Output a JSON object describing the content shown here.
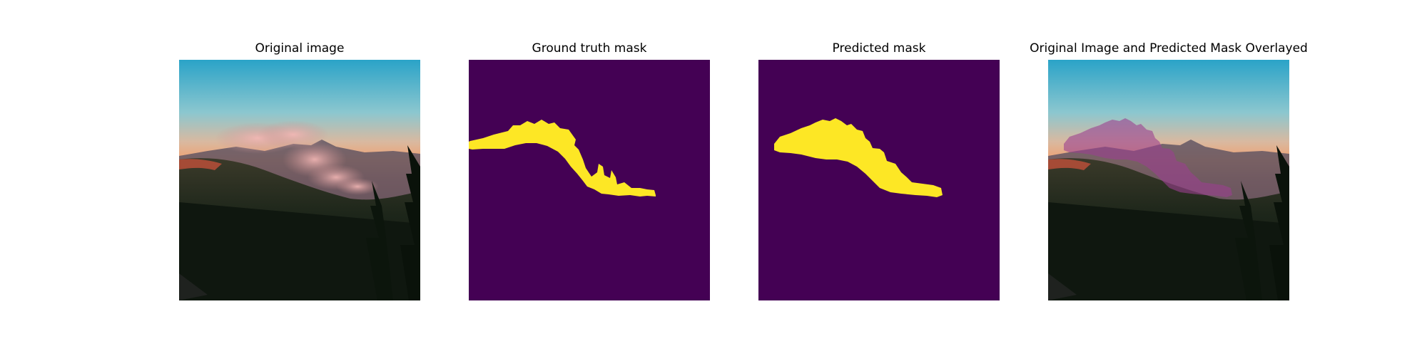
{
  "figure": {
    "panels": [
      {
        "title": "Original image"
      },
      {
        "title": "Ground truth mask"
      },
      {
        "title": "Predicted mask"
      },
      {
        "title": "Original Image and Predicted Mask Overlayed"
      }
    ]
  },
  "colors": {
    "mask_background": "#440154",
    "mask_foreground": "#fde725",
    "sky_top": "#2aa3c8",
    "sky_horizon": "#f0a070",
    "overlay_tint": "#9b3f8f",
    "forest_dark": "#101a10"
  }
}
